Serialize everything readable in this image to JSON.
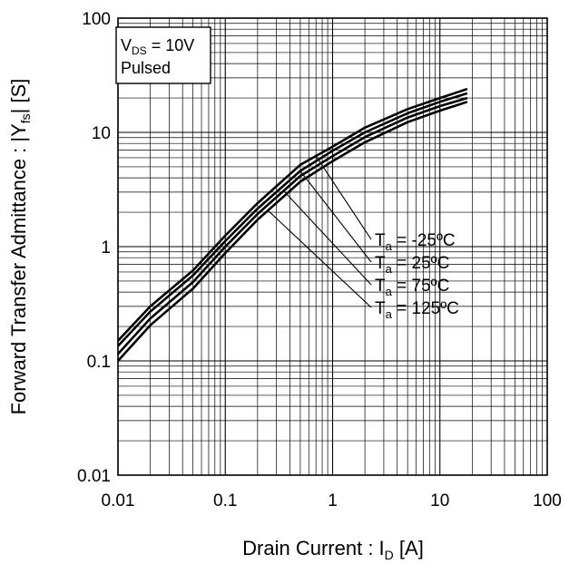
{
  "chart_data": {
    "type": "line",
    "x_scale": "log",
    "y_scale": "log",
    "xlim": [
      0.01,
      100
    ],
    "ylim": [
      0.01,
      100
    ],
    "grid": true,
    "xlabel": {
      "prefix": "Drain Current : I",
      "sub": "D",
      "suffix": " [A]"
    },
    "ylabel": {
      "prefix": "Forward Transfer Admittance : |Y",
      "sub": "fs",
      "suffix": "| [S]"
    },
    "x_ticks": [
      {
        "value": 0.01,
        "label": "0.01"
      },
      {
        "value": 0.1,
        "label": "0.1"
      },
      {
        "value": 1,
        "label": "1"
      },
      {
        "value": 10,
        "label": "10"
      },
      {
        "value": 100,
        "label": "100"
      }
    ],
    "y_ticks": [
      {
        "value": 0.01,
        "label": "0.01"
      },
      {
        "value": 0.1,
        "label": "0.1"
      },
      {
        "value": 1,
        "label": "1"
      },
      {
        "value": 10,
        "label": "10"
      },
      {
        "value": 100,
        "label": "100"
      }
    ],
    "conditions": {
      "line1_main": "V",
      "line1_sub": "DS",
      "line1_rest": " = 10V",
      "line2": "Pulsed"
    },
    "legend_position": "right, inside plot",
    "series": [
      {
        "name": "T_a = -25ºC",
        "label_main": "T",
        "label_sub": "a",
        "label_rest": " = -25ºC",
        "x": [
          0.01,
          0.02,
          0.05,
          0.1,
          0.2,
          0.5,
          1,
          2,
          5,
          10,
          18
        ],
        "y": [
          0.15,
          0.3,
          0.62,
          1.25,
          2.4,
          5.2,
          7.5,
          11,
          16,
          20,
          24
        ]
      },
      {
        "name": "T_a = 25ºC",
        "label_main": "T",
        "label_sub": "a",
        "label_rest": " = 25ºC",
        "x": [
          0.01,
          0.02,
          0.05,
          0.1,
          0.2,
          0.5,
          1,
          2,
          5,
          10,
          18
        ],
        "y": [
          0.135,
          0.27,
          0.56,
          1.12,
          2.15,
          4.6,
          6.9,
          10,
          14.7,
          18.5,
          22
        ]
      },
      {
        "name": "T_a = 75ºC",
        "label_main": "T",
        "label_sub": "a",
        "label_rest": " = 75ºC",
        "x": [
          0.01,
          0.02,
          0.05,
          0.1,
          0.2,
          0.5,
          1,
          2,
          5,
          10,
          18
        ],
        "y": [
          0.115,
          0.235,
          0.49,
          1.0,
          1.93,
          4.15,
          6.2,
          9.1,
          13.5,
          17,
          20
        ]
      },
      {
        "name": "T_a = 125ºC",
        "label_main": "T",
        "label_sub": "a",
        "label_rest": " = 125ºC",
        "x": [
          0.01,
          0.02,
          0.05,
          0.1,
          0.2,
          0.5,
          1,
          2,
          5,
          10,
          18
        ],
        "y": [
          0.1,
          0.205,
          0.43,
          0.88,
          1.72,
          3.7,
          5.6,
          8.2,
          12.3,
          15.5,
          18.5
        ]
      }
    ],
    "colors": {
      "line": "#000000",
      "grid": "#000000",
      "background": "#ffffff"
    }
  }
}
